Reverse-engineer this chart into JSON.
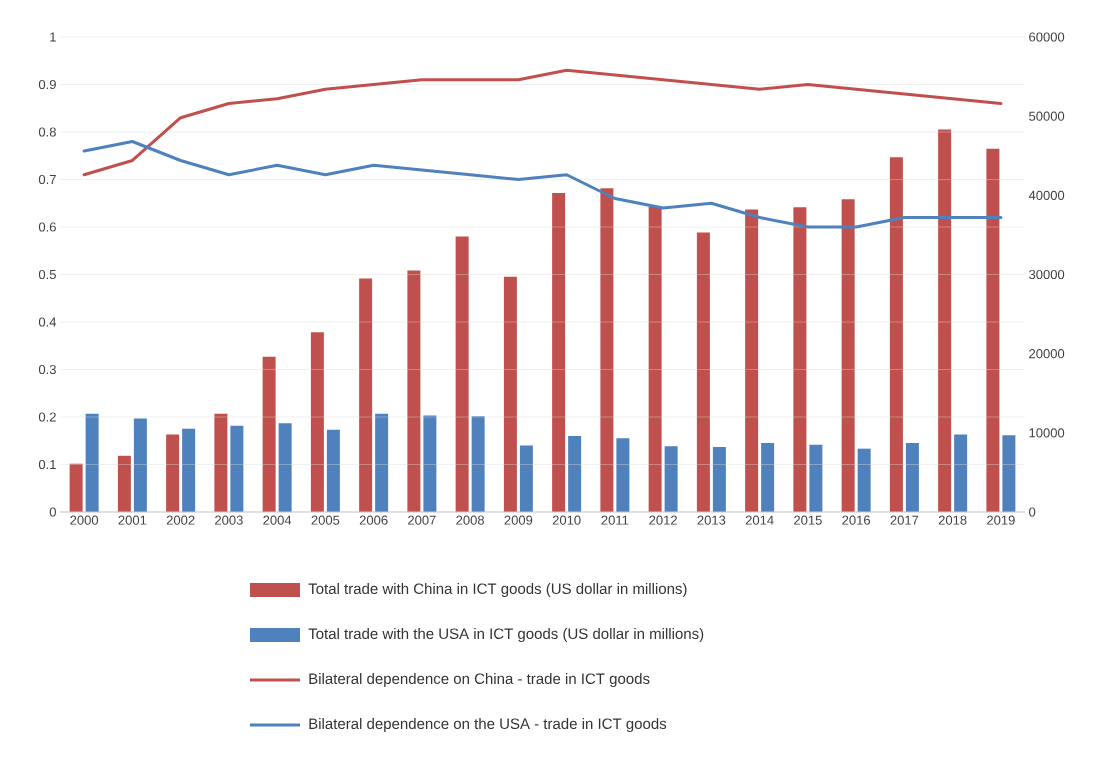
{
  "chart_data": {
    "type": "bar",
    "categories": [
      "2000",
      "2001",
      "2002",
      "2003",
      "2004",
      "2005",
      "2006",
      "2007",
      "2008",
      "2009",
      "2010",
      "2011",
      "2012",
      "2013",
      "2014",
      "2015",
      "2016",
      "2017",
      "2018",
      "2019"
    ],
    "series": [
      {
        "name": "Total trade with China in ICT goods (US dollar in millions)",
        "axis": "y2",
        "color": "#c0504d",
        "values": [
          6100,
          7100,
          9800,
          12400,
          19600,
          22700,
          29500,
          30500,
          34800,
          29700,
          40300,
          40900,
          38600,
          35300,
          38200,
          38500,
          39500,
          44800,
          48300,
          45900
        ]
      },
      {
        "name": "Total trade with the USA in ICT goods (US dollar in millions)",
        "axis": "y2",
        "color": "#4f81bd",
        "values": [
          12400,
          11800,
          10500,
          10900,
          11200,
          10400,
          12400,
          12200,
          12100,
          8400,
          9600,
          9300,
          8300,
          8200,
          8700,
          8500,
          8000,
          8700,
          9800,
          9700
        ]
      },
      {
        "name": "Bilateral dependence on China - trade in ICT goods",
        "type": "line",
        "color": "#c0504d",
        "values": [
          0.71,
          0.74,
          0.83,
          0.86,
          0.87,
          0.89,
          0.9,
          0.91,
          0.91,
          0.91,
          0.93,
          0.92,
          0.91,
          0.9,
          0.89,
          0.9,
          0.89,
          0.88,
          0.87,
          0.86
        ]
      },
      {
        "name": "Bilateral dependence on the USA - trade in ICT goods",
        "type": "line",
        "color": "#4f81bd",
        "values": [
          0.76,
          0.78,
          0.74,
          0.71,
          0.73,
          0.71,
          0.73,
          0.72,
          0.71,
          0.7,
          0.71,
          0.66,
          0.64,
          0.65,
          0.62,
          0.6,
          0.6,
          0.62,
          0.62,
          0.62
        ]
      }
    ],
    "ylim": [
      0,
      1
    ],
    "yticks": [
      0,
      0.1,
      0.2,
      0.3,
      0.4,
      0.5,
      0.6,
      0.7,
      0.8,
      0.9,
      1
    ],
    "y2lim": [
      0,
      60000
    ],
    "y2ticks": [
      0,
      10000,
      20000,
      30000,
      40000,
      50000,
      60000
    ],
    "grid": "y",
    "legend": "bottom",
    "marker": "none",
    "line_style": "solid"
  }
}
